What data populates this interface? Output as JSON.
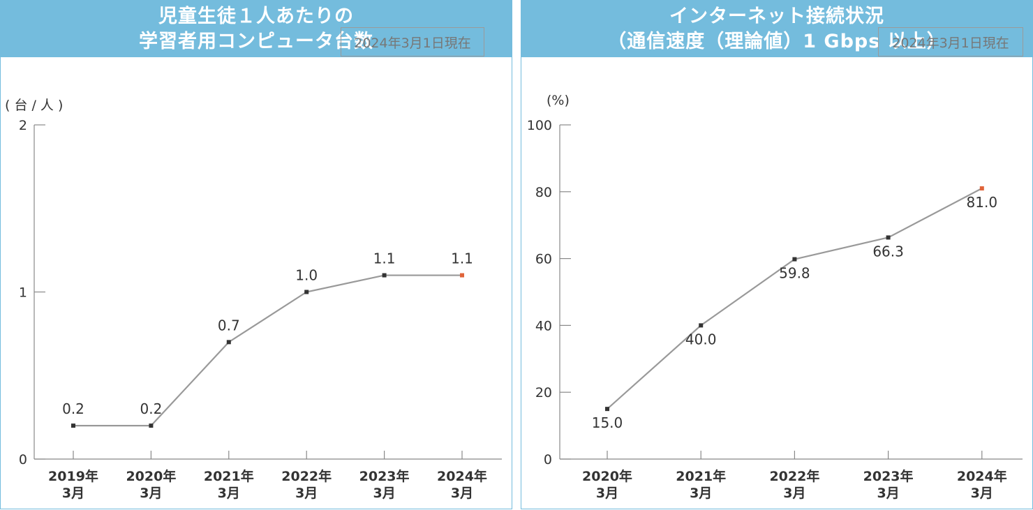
{
  "chart_data": [
    {
      "type": "line",
      "title_lines": [
        "児童生徒１人あたりの",
        "学習者用コンピュータ台数"
      ],
      "date_badge": "2024年3月1日現在",
      "unit_label": "( 台 / 人 )",
      "y_ticks": [
        "0",
        "1",
        "2"
      ],
      "ylim": [
        0,
        2
      ],
      "categories": [
        [
          "2019年",
          "3月"
        ],
        [
          "2020年",
          "3月"
        ],
        [
          "2021年",
          "3月"
        ],
        [
          "2022年",
          "3月"
        ],
        [
          "2023年",
          "3月"
        ],
        [
          "2024年",
          "3月"
        ]
      ],
      "values": [
        0.2,
        0.2,
        0.7,
        1.0,
        1.1,
        1.1
      ],
      "value_labels": [
        "0.2",
        "0.2",
        "0.7",
        "1.0",
        "1.1",
        "1.1"
      ],
      "grid": false,
      "colors": {
        "line": "#999999",
        "marker": "#333333",
        "highlight": "#e0643a"
      }
    },
    {
      "type": "line",
      "title_lines": [
        "インターネット接続状況",
        "（通信速度（理論値）1 Gbps 以上）"
      ],
      "date_badge": "2024年3月1日現在",
      "unit_label": "(%)",
      "y_ticks": [
        "0",
        "20",
        "40",
        "60",
        "80",
        "100"
      ],
      "ylim": [
        0,
        100
      ],
      "categories": [
        [
          "2020年",
          "3月"
        ],
        [
          "2021年",
          "3月"
        ],
        [
          "2022年",
          "3月"
        ],
        [
          "2023年",
          "3月"
        ],
        [
          "2024年",
          "3月"
        ]
      ],
      "values": [
        15.0,
        40.0,
        59.8,
        66.3,
        81.0
      ],
      "value_labels": [
        "15.0",
        "40.0",
        "59.8",
        "66.3",
        "81.0"
      ],
      "grid": false,
      "colors": {
        "line": "#999999",
        "marker": "#333333",
        "highlight": "#e0643a"
      }
    }
  ]
}
